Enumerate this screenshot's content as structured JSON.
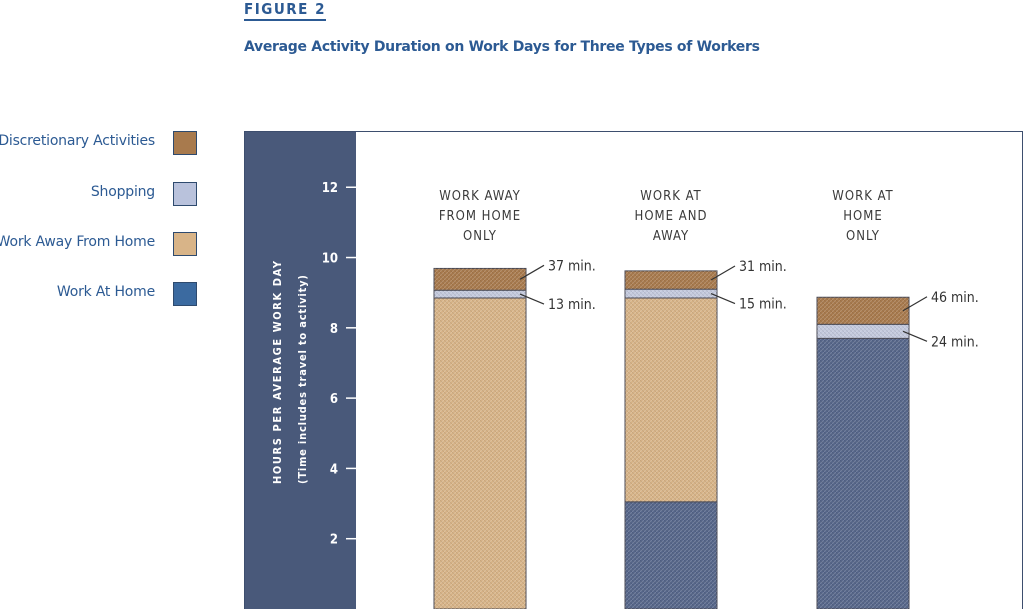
{
  "figure_label": "FIGURE 2",
  "chart_data": {
    "type": "bar",
    "stacked": true,
    "title": "Average Activity Duration on Work Days for Three Types of Workers",
    "ylabel": "HOURS PER AVERAGE WORK DAY",
    "ylabel_sub": "(Time includes travel to activity)",
    "ylim": [
      0,
      13.6
    ],
    "yticks": [
      2,
      4,
      6,
      8,
      10,
      12
    ],
    "categories": [
      [
        "WORK AWAY",
        "FROM HOME",
        "ONLY"
      ],
      [
        "WORK AT",
        "HOME AND",
        "AWAY"
      ],
      [
        "WORK AT",
        "HOME",
        "ONLY"
      ]
    ],
    "series": [
      {
        "name": "Work At Home",
        "color": "#56668a",
        "values": [
          0,
          3.05,
          7.7
        ]
      },
      {
        "name": "Work Away From Home",
        "color": "#d8b488",
        "values": [
          8.85,
          5.8,
          0
        ]
      },
      {
        "name": "Shopping",
        "color": "#c3c9dd",
        "values": [
          0.22,
          0.25,
          0.4
        ]
      },
      {
        "name": "Discretionary Activities",
        "color": "#a87a4d",
        "values": [
          0.62,
          0.52,
          0.77
        ]
      }
    ],
    "annotations": [
      {
        "bar": 0,
        "series": "Discretionary Activities",
        "text": "37 min."
      },
      {
        "bar": 0,
        "series": "Shopping",
        "text": "13 min."
      },
      {
        "bar": 1,
        "series": "Discretionary Activities",
        "text": "31 min."
      },
      {
        "bar": 1,
        "series": "Shopping",
        "text": "15 min."
      },
      {
        "bar": 2,
        "series": "Discretionary Activities",
        "text": "46 min."
      },
      {
        "bar": 2,
        "series": "Shopping",
        "text": "24 min."
      }
    ]
  },
  "legend": [
    {
      "label": "Discretionary Activities",
      "color": "#a87a4d"
    },
    {
      "label": "Shopping",
      "color": "#b9c2dc"
    },
    {
      "label": "Work Away From Home",
      "color": "#d8b488"
    },
    {
      "label": "Work At Home",
      "color": "#3b6aa0"
    }
  ],
  "colors": {
    "accent_text": "#2c5a93",
    "axis_panel": "#49597a",
    "plot_border": "#3d4e6e"
  }
}
